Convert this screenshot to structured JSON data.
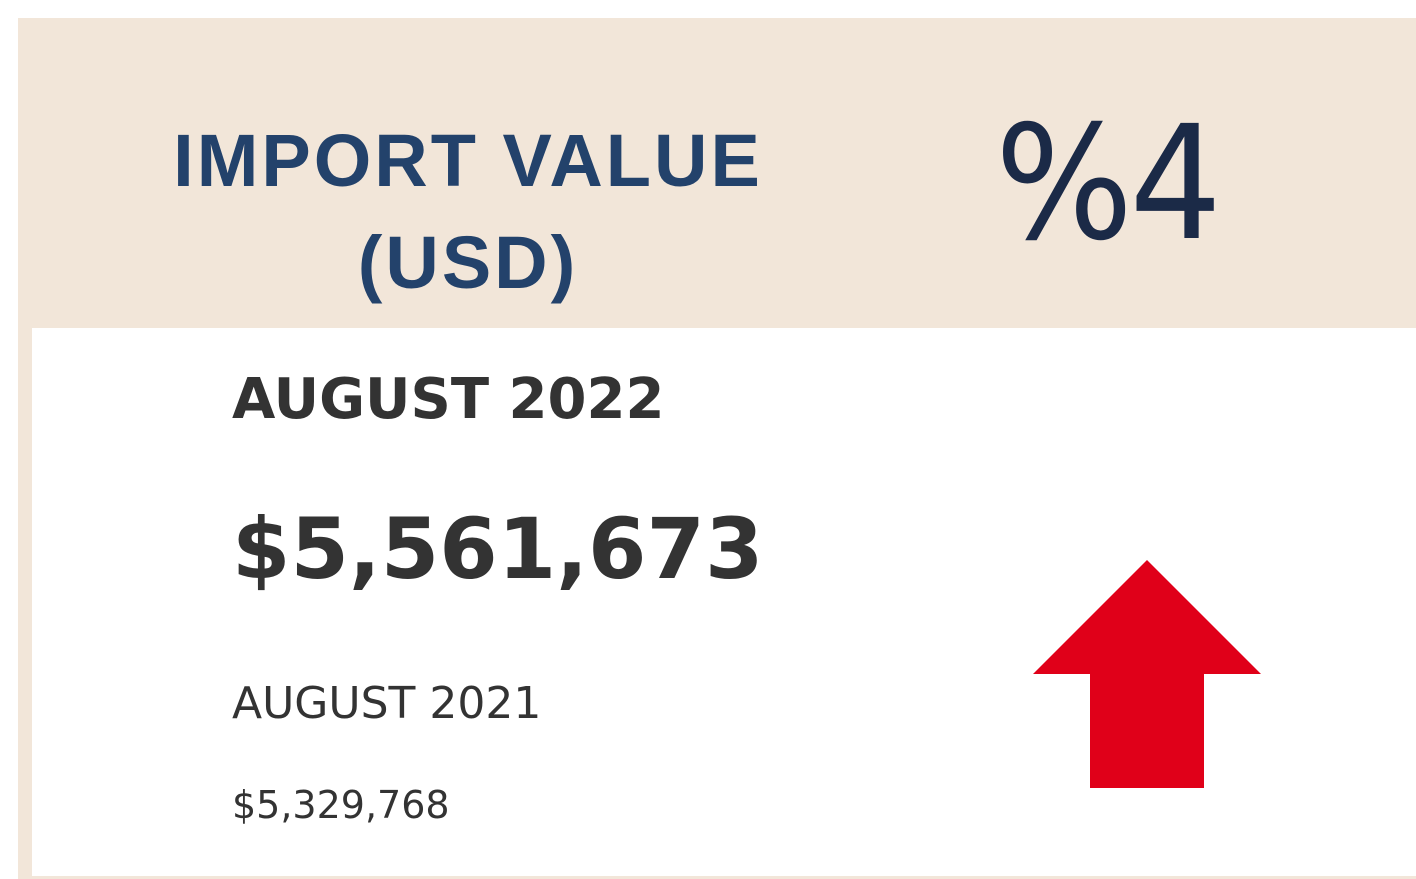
{
  "header": {
    "title_lines": [
      "IMPORT VALUE",
      "(USD)"
    ],
    "change": "%4"
  },
  "current": {
    "period": "AUGUST 2022",
    "value": "$5,561,673"
  },
  "previous": {
    "period": "AUGUST 2021",
    "value": "$5,329,768"
  }
}
